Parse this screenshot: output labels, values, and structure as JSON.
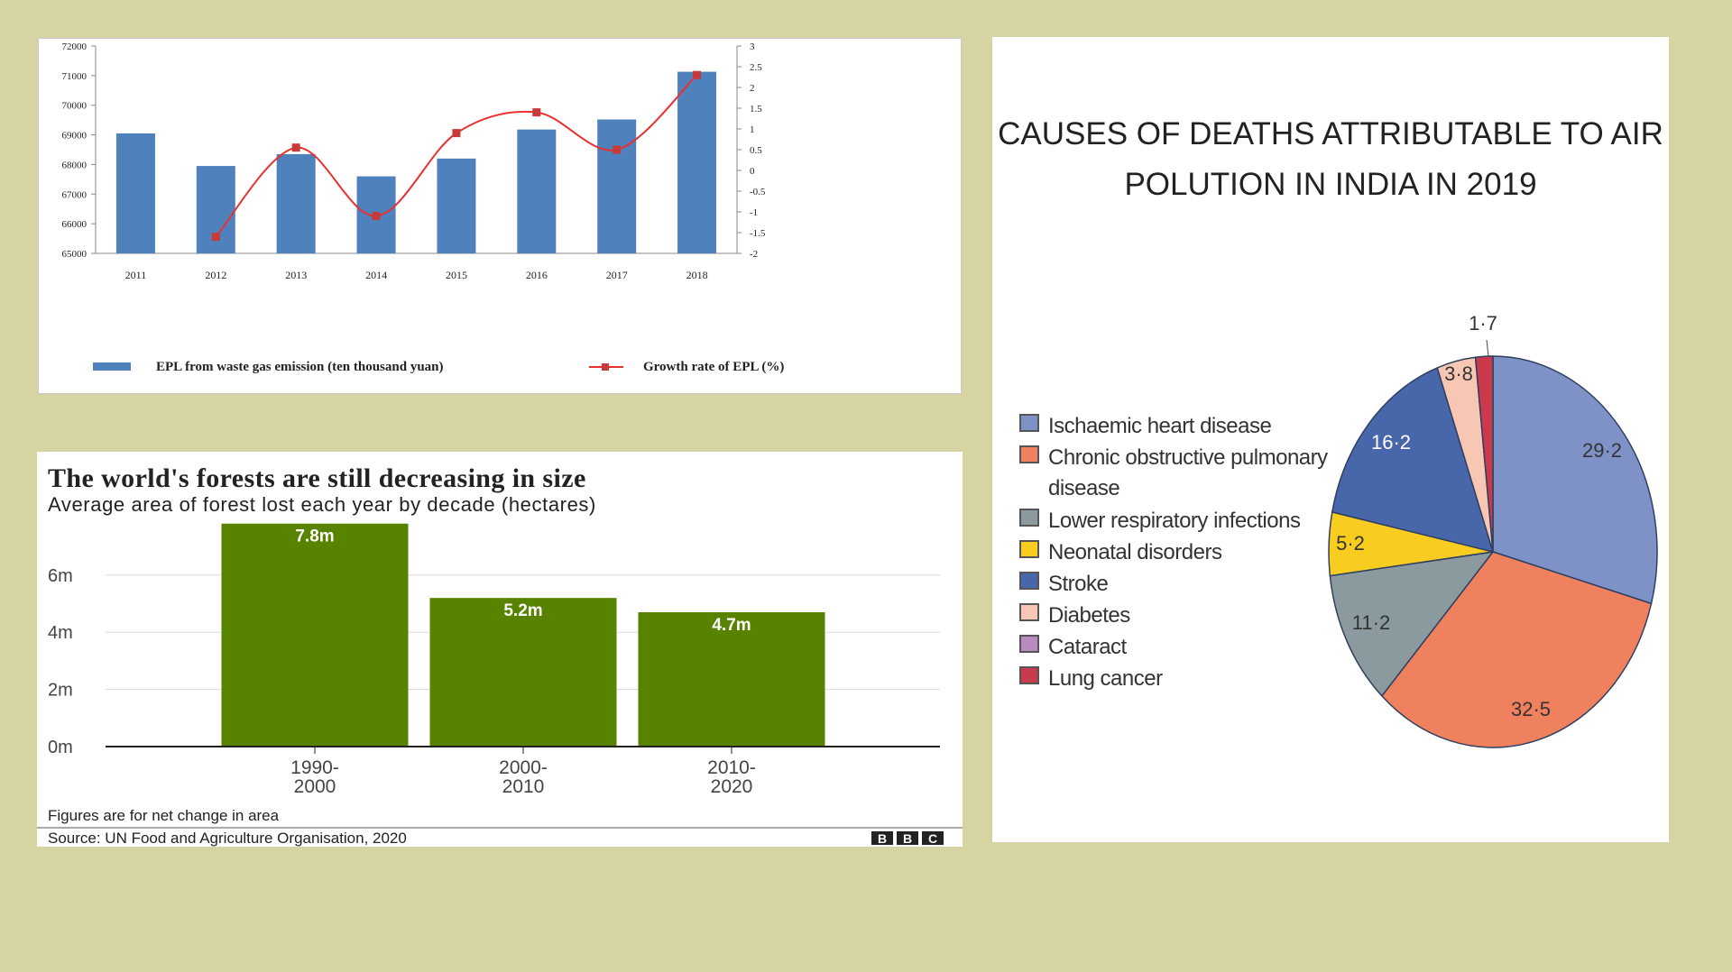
{
  "chart_data": [
    {
      "type": "bar",
      "categories": [
        "2011",
        "2012",
        "2013",
        "2014",
        "2015",
        "2016",
        "2017",
        "2018"
      ],
      "series": [
        {
          "name": "EPL from waste gas emission (ten thousand yuan)",
          "type": "bar",
          "axis": "left",
          "values": [
            69050,
            67950,
            68350,
            67600,
            68200,
            69180,
            69520,
            71130
          ],
          "color": "#4f81bd"
        },
        {
          "name": "Growth rate of EPL (%)",
          "type": "line",
          "axis": "right",
          "values": [
            null,
            -1.6,
            0.55,
            -1.1,
            0.9,
            1.4,
            0.5,
            2.3
          ],
          "color": "#e8312f"
        }
      ],
      "ylim": [
        65000,
        72000
      ],
      "yticks": [
        "72000",
        "71000",
        "70000",
        "69000",
        "68000",
        "67000",
        "66000",
        "65000"
      ],
      "y2lim": [
        -2,
        3
      ],
      "y2ticks": [
        "3",
        "2.5",
        "2",
        "1.5",
        "1",
        "0.5",
        "0",
        "-0.5",
        "-1",
        "-1.5",
        "-2"
      ],
      "legend": "bottom",
      "grid": false
    },
    {
      "type": "bar",
      "title": "The world's forests are still decreasing in size",
      "subtitle": "Average area of forest lost each year by decade (hectares)",
      "categories": [
        [
          "1990-",
          "2000"
        ],
        [
          "2000-",
          "2010"
        ],
        [
          "2010-",
          "2020"
        ]
      ],
      "values": [
        7.8,
        5.2,
        4.7
      ],
      "data_labels": [
        "7.8m",
        "5.2m",
        "4.7m"
      ],
      "yticks": [
        "6m",
        "4m",
        "2m",
        "0m"
      ],
      "ylim": [
        0,
        8
      ],
      "grid": true,
      "color": "#588300",
      "note": "Figures are for net change in area",
      "source": "Source: UN Food and Agriculture Organisation, 2020",
      "brand": [
        "B",
        "B",
        "C"
      ]
    },
    {
      "type": "pie",
      "title": [
        "CAUSES OF DEATHS ATTRIBUTABLE TO AIR",
        "POLUTION IN INDIA IN 2019"
      ],
      "legend": "left",
      "slices": [
        {
          "label": "Ischaemic heart disease",
          "value": 29.2,
          "display": "29·2",
          "color": "#7f92c8"
        },
        {
          "label": "Chronic obstructive pulmonary disease",
          "value": 32.5,
          "display": "32·5",
          "color": "#f0815f"
        },
        {
          "label": "Lower respiratory infections",
          "value": 11.2,
          "display": "11·2",
          "color": "#8a9a9e"
        },
        {
          "label": "Neonatal disorders",
          "value": 5.2,
          "display": "5·2",
          "color": "#f8cd20"
        },
        {
          "label": "Stroke",
          "value": 16.2,
          "display": "16·2",
          "color": "#4867aa"
        },
        {
          "label": "Diabetes",
          "value": 3.8,
          "display": "3·8",
          "color": "#f7c7b4"
        },
        {
          "label": "Cataract",
          "value": 0,
          "display": "",
          "color": "#b98ac0"
        },
        {
          "label": "Lung cancer",
          "value": 1.7,
          "display": "1·7",
          "color": "#c83a4c"
        }
      ],
      "legend_lines": [
        [
          "Ischaemic heart disease"
        ],
        [
          "Chronic obstructive pulmonary",
          "disease"
        ],
        [
          "Lower respiratory infections"
        ],
        [
          "Neonatal disorders"
        ],
        [
          "Stroke"
        ],
        [
          "Diabetes"
        ],
        [
          "Cataract"
        ],
        [
          "Lung cancer"
        ]
      ]
    }
  ]
}
